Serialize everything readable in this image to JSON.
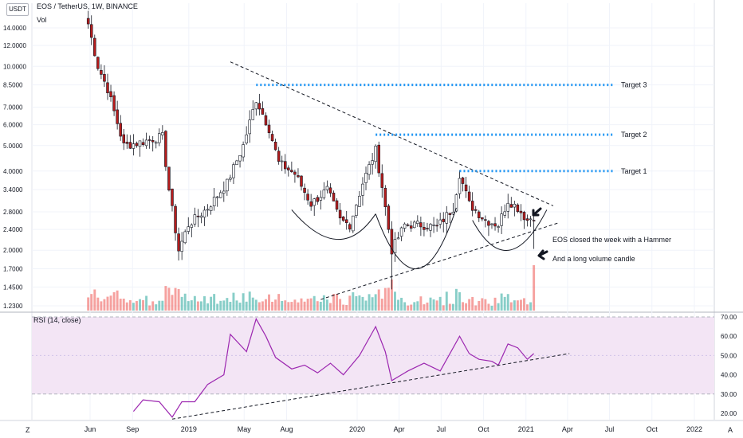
{
  "header": {
    "currency_badge": "USDT",
    "symbol_title": "EOS / TetherUS, 1W, BINANCE",
    "volume_label": "Vol"
  },
  "rsi": {
    "title": "RSI (14, close)"
  },
  "bottom_bar": {
    "left_button": "Z",
    "right_button": "A"
  },
  "colors": {
    "up": "#26a69a",
    "down": "#ef5350",
    "candle_up_body": "#ffffff",
    "candle_down_body": "#b71c1c",
    "target_dots": "#2196f3",
    "rsi_line": "#9c27b0",
    "rsi_band": "#f3e5f5",
    "annotation": "#131722"
  },
  "chart_data": [
    {
      "type": "candlestick",
      "title": "EOS / TetherUS, 1W, BINANCE",
      "y_scale": "log",
      "ylim": [
        1.2,
        17.5
      ],
      "y_ticks": [
        "14.0000",
        "12.0000",
        "10.0000",
        "8.5000",
        "7.0000",
        "6.0000",
        "5.0000",
        "4.0000",
        "3.4000",
        "2.8000",
        "2.4000",
        "2.0000",
        "1.7000",
        "1.4500",
        "1.2300"
      ],
      "y_tick_values": [
        14.0,
        12.0,
        10.0,
        8.5,
        7.0,
        6.0,
        5.0,
        4.0,
        3.4,
        2.8,
        2.4,
        2.0,
        1.7,
        1.45,
        1.23
      ],
      "x_ticks": [
        "Jun",
        "Sep",
        "2019",
        "May",
        "Aug",
        "2020",
        "Apr",
        "Jul",
        "Oct",
        "2021",
        "Apr",
        "Jul",
        "Oct",
        "2022"
      ],
      "x_tick_dates": [
        "2018-06-01",
        "2018-09-01",
        "2019-01-01",
        "2019-05-01",
        "2019-08-01",
        "2020-01-01",
        "2020-04-01",
        "2020-07-01",
        "2020-10-01",
        "2021-01-01",
        "2021-04-01",
        "2021-07-01",
        "2021-10-01",
        "2022-01-01"
      ],
      "anchor_points": [
        {
          "date": "2018-05-28",
          "close": 14.5
        },
        {
          "date": "2018-06-18",
          "close": 10.0
        },
        {
          "date": "2018-07-09",
          "close": 8.2
        },
        {
          "date": "2018-08-13",
          "close": 5.0
        },
        {
          "date": "2018-09-10",
          "close": 5.1
        },
        {
          "date": "2018-10-15",
          "close": 5.3
        },
        {
          "date": "2018-11-05",
          "close": 5.4
        },
        {
          "date": "2018-11-19",
          "close": 3.4
        },
        {
          "date": "2018-12-10",
          "close": 2.0
        },
        {
          "date": "2018-12-31",
          "close": 2.5
        },
        {
          "date": "2019-02-11",
          "close": 2.9
        },
        {
          "date": "2019-03-25",
          "close": 3.6
        },
        {
          "date": "2019-04-29",
          "close": 5.0
        },
        {
          "date": "2019-05-27",
          "close": 7.5
        },
        {
          "date": "2019-06-24",
          "close": 5.8
        },
        {
          "date": "2019-07-15",
          "close": 4.3
        },
        {
          "date": "2019-08-19",
          "close": 3.9
        },
        {
          "date": "2019-09-23",
          "close": 3.0
        },
        {
          "date": "2019-10-28",
          "close": 3.4
        },
        {
          "date": "2019-11-25",
          "close": 2.6
        },
        {
          "date": "2019-12-16",
          "close": 2.5
        },
        {
          "date": "2020-01-13",
          "close": 3.6
        },
        {
          "date": "2020-02-10",
          "close": 4.8
        },
        {
          "date": "2020-02-24",
          "close": 3.5
        },
        {
          "date": "2020-03-16",
          "close": 2.0
        },
        {
          "date": "2020-04-13",
          "close": 2.5
        },
        {
          "date": "2020-05-18",
          "close": 2.5
        },
        {
          "date": "2020-06-22",
          "close": 2.45
        },
        {
          "date": "2020-07-27",
          "close": 2.9
        },
        {
          "date": "2020-08-10",
          "close": 3.9
        },
        {
          "date": "2020-08-31",
          "close": 3.0
        },
        {
          "date": "2020-10-05",
          "close": 2.6
        },
        {
          "date": "2020-11-02",
          "close": 2.5
        },
        {
          "date": "2020-11-23",
          "close": 3.1
        },
        {
          "date": "2020-12-14",
          "close": 2.9
        },
        {
          "date": "2021-01-04",
          "close": 2.6
        },
        {
          "date": "2021-01-18",
          "close": 2.7
        }
      ],
      "annotations": {
        "targets": [
          {
            "label": "Target 3",
            "price": 8.5
          },
          {
            "label": "Target 2",
            "price": 5.5
          },
          {
            "label": "Target 1",
            "price": 4.0
          }
        ],
        "notes": [
          "EOS closed the week with a Hammer",
          "And a long volume candle"
        ]
      }
    },
    {
      "type": "line",
      "title": "RSI (14, close)",
      "ylim": [
        15,
        72
      ],
      "y_ticks": [
        "70.00",
        "60.00",
        "50.00",
        "40.00",
        "30.00",
        "20.00"
      ],
      "y_tick_values": [
        70,
        60,
        50,
        40,
        30,
        20
      ],
      "band": [
        30,
        70
      ],
      "anchor_points": [
        {
          "date": "2018-09-03",
          "value": 21
        },
        {
          "date": "2018-09-24",
          "value": 27
        },
        {
          "date": "2018-10-29",
          "value": 26
        },
        {
          "date": "2018-11-26",
          "value": 18
        },
        {
          "date": "2018-12-17",
          "value": 26
        },
        {
          "date": "2019-01-14",
          "value": 26
        },
        {
          "date": "2019-02-11",
          "value": 35
        },
        {
          "date": "2019-03-18",
          "value": 40
        },
        {
          "date": "2019-04-01",
          "value": 61
        },
        {
          "date": "2019-05-06",
          "value": 52
        },
        {
          "date": "2019-05-27",
          "value": 69
        },
        {
          "date": "2019-06-17",
          "value": 60
        },
        {
          "date": "2019-07-08",
          "value": 49
        },
        {
          "date": "2019-08-12",
          "value": 43
        },
        {
          "date": "2019-09-09",
          "value": 45
        },
        {
          "date": "2019-10-07",
          "value": 41
        },
        {
          "date": "2019-11-04",
          "value": 46
        },
        {
          "date": "2019-12-02",
          "value": 40
        },
        {
          "date": "2020-01-06",
          "value": 50
        },
        {
          "date": "2020-02-10",
          "value": 65
        },
        {
          "date": "2020-03-02",
          "value": 52
        },
        {
          "date": "2020-03-16",
          "value": 37
        },
        {
          "date": "2020-04-20",
          "value": 42
        },
        {
          "date": "2020-05-25",
          "value": 46
        },
        {
          "date": "2020-06-29",
          "value": 42
        },
        {
          "date": "2020-08-10",
          "value": 60
        },
        {
          "date": "2020-08-31",
          "value": 51
        },
        {
          "date": "2020-09-21",
          "value": 48
        },
        {
          "date": "2020-10-19",
          "value": 47
        },
        {
          "date": "2020-11-02",
          "value": 45
        },
        {
          "date": "2020-11-23",
          "value": 56
        },
        {
          "date": "2020-12-14",
          "value": 54
        },
        {
          "date": "2021-01-04",
          "value": 48
        },
        {
          "date": "2021-01-18",
          "value": 51
        }
      ]
    }
  ]
}
